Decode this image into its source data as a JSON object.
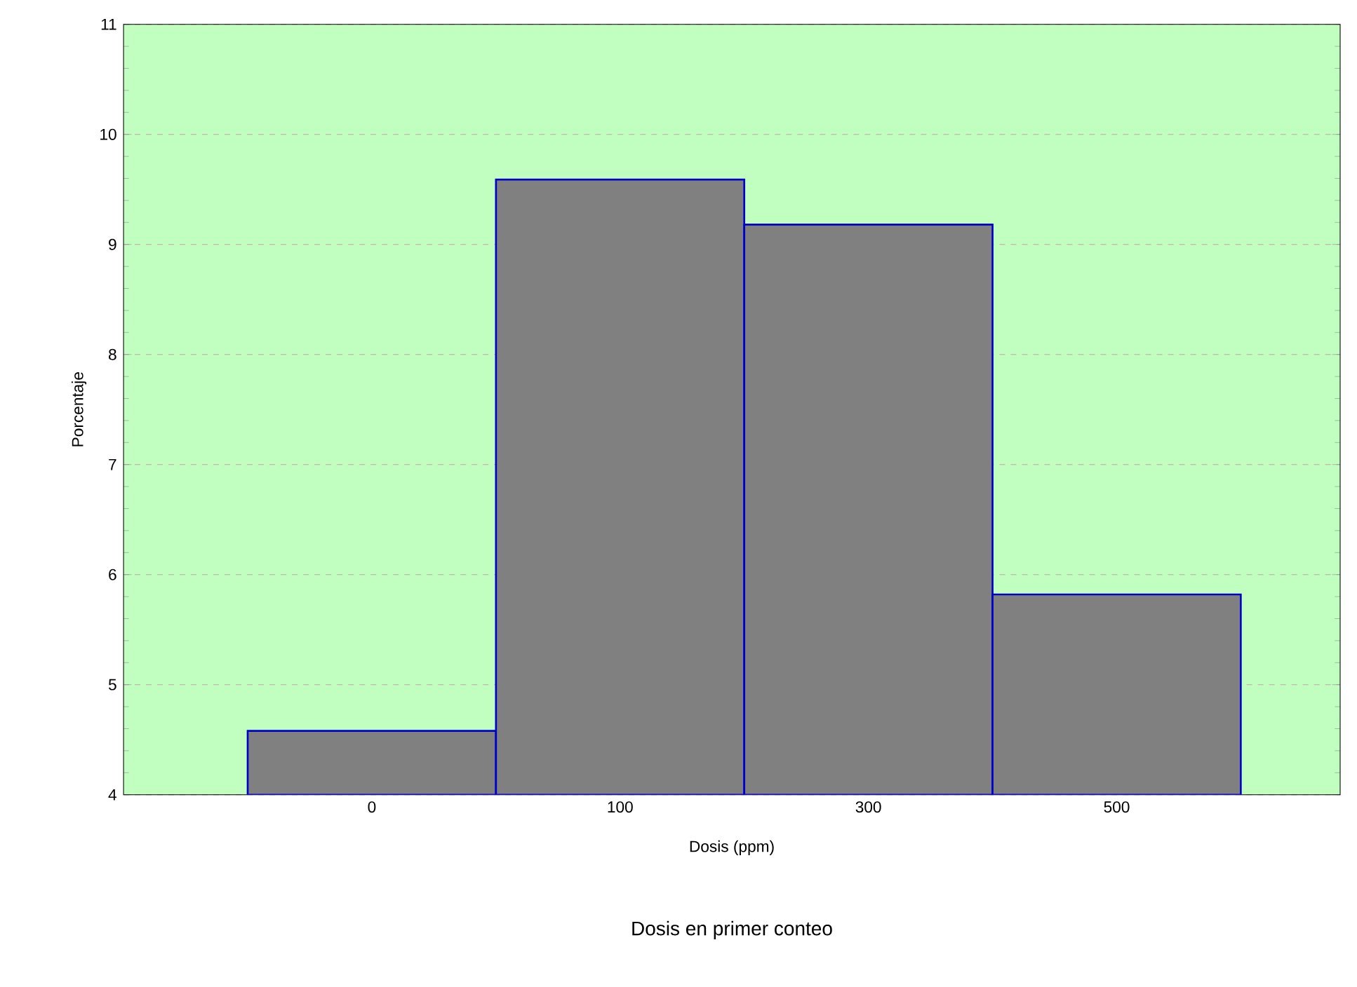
{
  "chart_data": {
    "type": "bar",
    "title": "Dosis en primer conteo",
    "xlabel": "Dosis (ppm)",
    "ylabel": "Porcentaje",
    "categories": [
      "0",
      "100",
      "300",
      "500"
    ],
    "series": [
      {
        "color": "#808080",
        "values": [
          4.58,
          9.59,
          9.18,
          5.82
        ]
      }
    ],
    "ylim": [
      4,
      11
    ],
    "yticks": [
      4,
      5,
      6,
      7,
      8,
      9,
      10,
      11
    ],
    "grid": "y"
  }
}
